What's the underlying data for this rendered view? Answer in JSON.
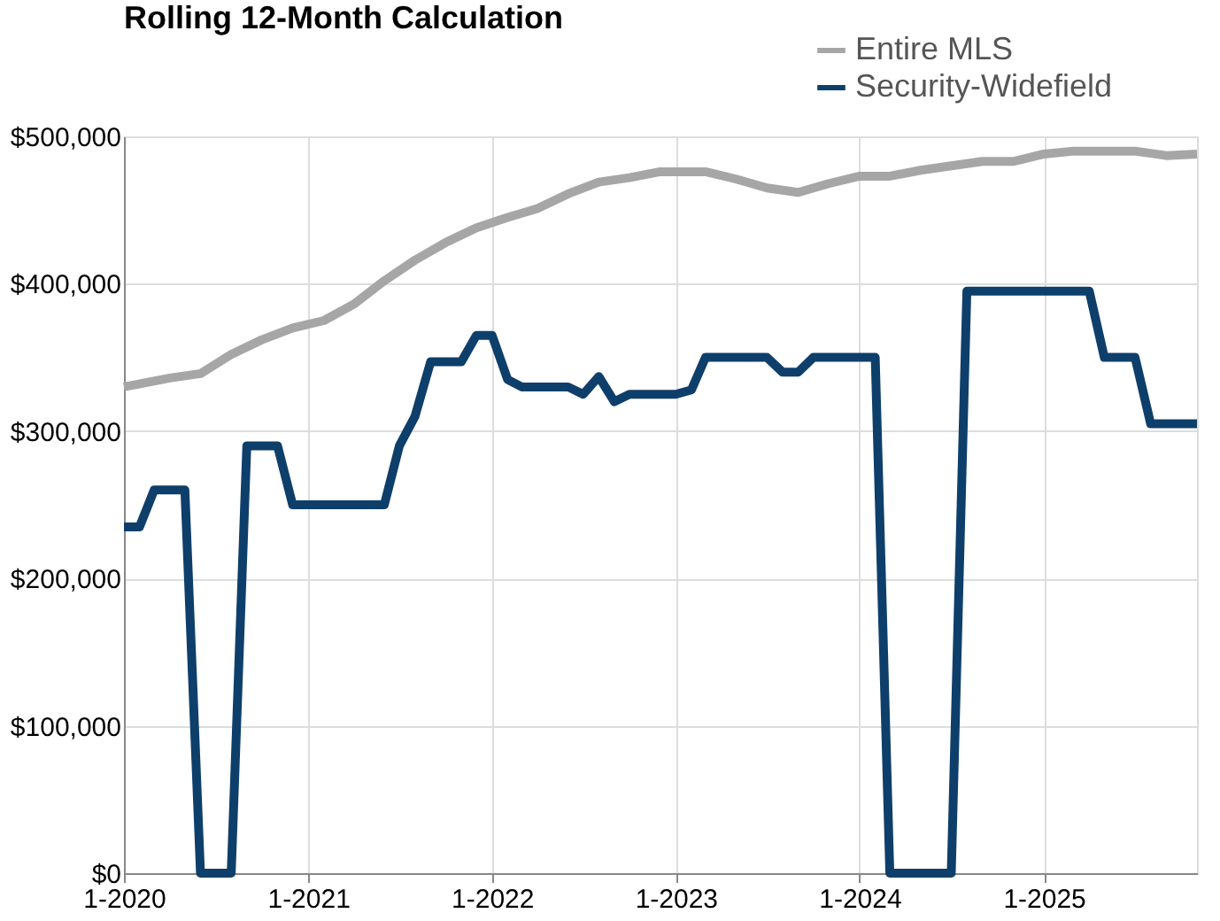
{
  "chart_data": {
    "type": "line",
    "title": "Rolling 12-Month Calculation",
    "x": [
      "2020-01",
      "2020-02",
      "2020-03",
      "2020-04",
      "2020-05",
      "2020-06",
      "2020-07",
      "2020-08",
      "2020-09",
      "2020-10",
      "2020-11",
      "2020-12",
      "2021-01",
      "2021-02",
      "2021-03",
      "2021-04",
      "2021-05",
      "2021-06",
      "2021-07",
      "2021-08",
      "2021-09",
      "2021-10",
      "2021-11",
      "2021-12",
      "2022-01",
      "2022-02",
      "2022-03",
      "2022-04",
      "2022-05",
      "2022-06",
      "2022-07",
      "2022-08",
      "2022-09",
      "2022-10",
      "2022-11",
      "2022-12",
      "2023-01",
      "2023-02",
      "2023-03",
      "2023-04",
      "2023-05",
      "2023-06",
      "2023-07",
      "2023-08",
      "2023-09",
      "2023-10",
      "2023-11",
      "2023-12",
      "2024-01",
      "2024-02",
      "2024-03",
      "2024-04",
      "2024-05",
      "2024-06",
      "2024-07",
      "2024-08",
      "2024-09",
      "2024-10",
      "2024-11",
      "2024-12",
      "2025-01",
      "2025-02",
      "2025-03",
      "2025-04",
      "2025-05",
      "2025-06",
      "2025-07",
      "2025-08",
      "2025-09",
      "2025-10",
      "2025-11"
    ],
    "series": [
      {
        "name": "Entire MLS",
        "color": "#a6a6a6",
        "x": [
          "2020-01",
          "2020-04",
          "2020-06",
          "2020-08",
          "2020-10",
          "2020-12",
          "2021-02",
          "2021-04",
          "2021-06",
          "2021-08",
          "2021-10",
          "2021-12",
          "2022-02",
          "2022-04",
          "2022-06",
          "2022-08",
          "2022-10",
          "2022-12",
          "2023-01",
          "2023-03",
          "2023-05",
          "2023-07",
          "2023-09",
          "2023-11",
          "2024-01",
          "2024-03",
          "2024-05",
          "2024-07",
          "2024-09",
          "2024-11",
          "2025-01",
          "2025-03",
          "2025-05",
          "2025-07",
          "2025-09",
          "2025-11"
        ],
        "values": [
          330000,
          336000,
          339000,
          352000,
          362000,
          370000,
          375000,
          386000,
          402000,
          416000,
          428000,
          438000,
          445000,
          451000,
          461000,
          469000,
          472000,
          476000,
          476000,
          476000,
          471000,
          465000,
          462000,
          468000,
          473000,
          473000,
          477000,
          480000,
          483000,
          483000,
          488000,
          490000,
          490000,
          490000,
          487000,
          488000
        ]
      },
      {
        "name": "Security-Widefield",
        "color": "#0e3f6b",
        "values": [
          235000,
          235000,
          260000,
          260000,
          260000,
          0,
          0,
          0,
          290000,
          290000,
          290000,
          250000,
          250000,
          250000,
          250000,
          250000,
          250000,
          250000,
          290000,
          310000,
          347000,
          347000,
          347000,
          365000,
          365000,
          335000,
          330000,
          330000,
          330000,
          330000,
          325000,
          337000,
          320000,
          325000,
          325000,
          325000,
          325000,
          328000,
          350000,
          350000,
          350000,
          350000,
          350000,
          340000,
          340000,
          350000,
          350000,
          350000,
          350000,
          350000,
          0,
          0,
          0,
          0,
          0,
          395000,
          395000,
          395000,
          395000,
          395000,
          395000,
          395000,
          395000,
          395000,
          350000,
          350000,
          350000,
          305000,
          305000,
          305000,
          305000
        ]
      }
    ],
    "xlim": [
      "2020-01",
      "2025-11"
    ],
    "xticks": [
      {
        "value": "2020-01",
        "label": "1-2020"
      },
      {
        "value": "2021-01",
        "label": "1-2021"
      },
      {
        "value": "2022-01",
        "label": "1-2022"
      },
      {
        "value": "2023-01",
        "label": "1-2023"
      },
      {
        "value": "2024-01",
        "label": "1-2024"
      },
      {
        "value": "2025-01",
        "label": "1-2025"
      }
    ],
    "ylim": [
      0,
      500000
    ],
    "yticks": [
      {
        "value": 0,
        "label": "$0"
      },
      {
        "value": 100000,
        "label": "$100,000"
      },
      {
        "value": 200000,
        "label": "$200,000"
      },
      {
        "value": 300000,
        "label": "$300,000"
      },
      {
        "value": 400000,
        "label": "$400,000"
      },
      {
        "value": 500000,
        "label": "$500,000"
      }
    ],
    "grid": true,
    "legend": "top right",
    "marker": "none",
    "line_style": "solid"
  }
}
